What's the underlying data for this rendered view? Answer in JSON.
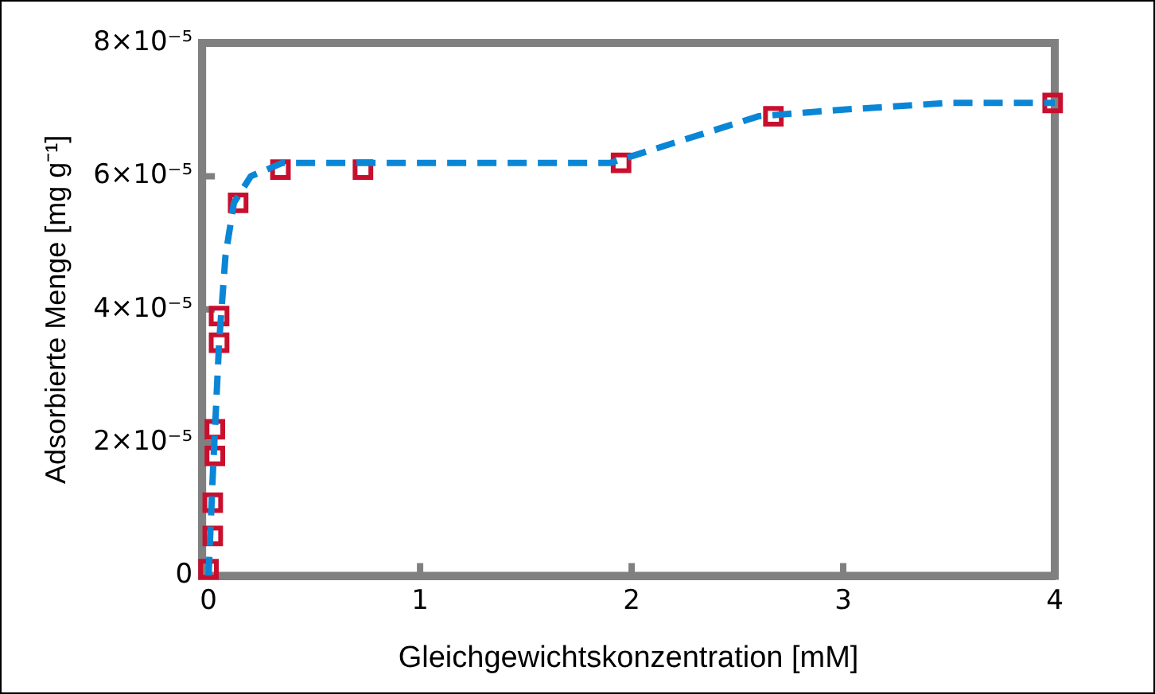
{
  "chart_data": {
    "type": "scatter",
    "xlabel": "Gleichgewichtskonzentration [mM]",
    "ylabel": "Adsorbierte Menge [mg g⁻¹]",
    "xlim": [
      -0.03,
      4
    ],
    "xticks": [
      0,
      1,
      2,
      3,
      4
    ],
    "ylim": [
      0,
      8e-05
    ],
    "yticks": [
      0,
      {
        "value": 2e-05,
        "label": "2×10⁻⁵"
      },
      {
        "value": 4e-05,
        "label": "4×10⁻⁵"
      },
      {
        "value": 6e-05,
        "label": "6×10⁻⁵"
      },
      {
        "value": 8e-05,
        "label": "8×10⁻⁵"
      }
    ],
    "grid": false,
    "legend": false,
    "series": [
      {
        "type": "line",
        "color": "#0a86d6",
        "line_style": "dashed",
        "marker": "none",
        "x": [
          0,
          0.02,
          0.05,
          0.08,
          0.12,
          0.2,
          0.35,
          1,
          1.9,
          2.2,
          2.6,
          3,
          3.5,
          4
        ],
        "values": [
          0,
          1.5e-05,
          3.5e-05,
          4.8e-05,
          5.6e-05,
          6e-05,
          6.2e-05,
          6.2e-05,
          6.2e-05,
          6.5e-05,
          6.9e-05,
          7e-05,
          7.1e-05,
          7.1e-05
        ]
      },
      {
        "type": "scatter",
        "color": "#c8102e",
        "marker": "square",
        "x": [
          0,
          0.02,
          0.02,
          0.03,
          0.03,
          0.05,
          0.05,
          0.14,
          0.34,
          0.73,
          1.95,
          2.67,
          3.99
        ],
        "values": [
          1e-06,
          6e-06,
          1.1e-05,
          1.8e-05,
          2.2e-05,
          3.5e-05,
          3.9e-05,
          5.6e-05,
          6.1e-05,
          6.1e-05,
          6.2e-05,
          6.9e-05,
          7.1e-05
        ]
      }
    ]
  }
}
